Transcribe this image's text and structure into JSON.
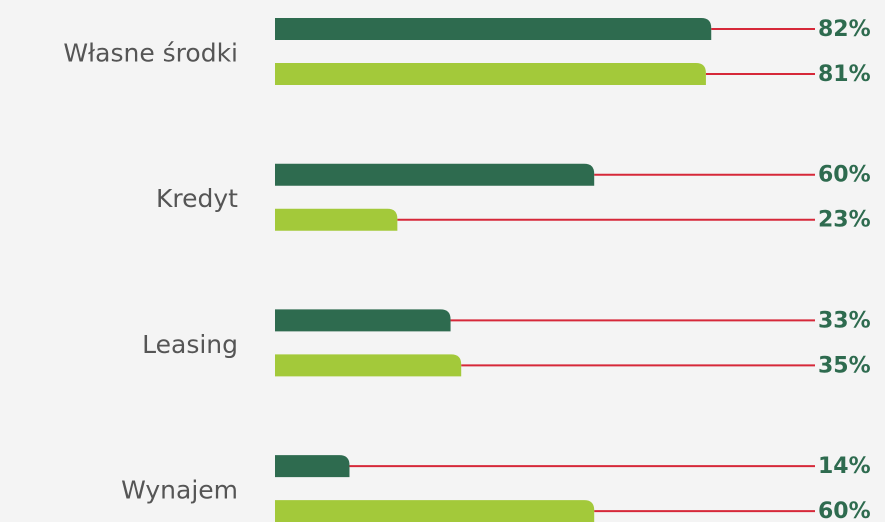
{
  "chart_data": {
    "type": "bar",
    "orientation": "horizontal",
    "categories": [
      "Własne środki",
      "Kredyt",
      "Leasing",
      "Wynajem"
    ],
    "series": [
      {
        "color": "#2e6b4f",
        "values": [
          82,
          60,
          33,
          14
        ],
        "value_labels": [
          "82%",
          "60%",
          "33%",
          "14%"
        ]
      },
      {
        "color": "#a3c93a",
        "values": [
          81,
          23,
          35,
          60
        ],
        "value_labels": [
          "81%",
          "23%",
          "35%",
          "60%"
        ]
      }
    ],
    "leader_color": "#d62839",
    "xlim": [
      0,
      100
    ]
  }
}
